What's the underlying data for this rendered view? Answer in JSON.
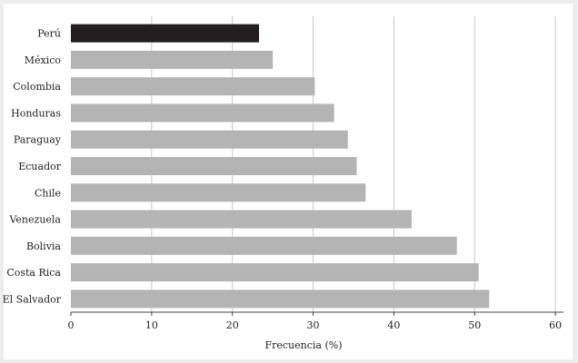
{
  "chart_data": {
    "type": "bar",
    "orientation": "horizontal",
    "categories": [
      "Perú",
      "México",
      "Colombia",
      "Honduras",
      "Paraguay",
      "Ecuador",
      "Chile",
      "Venezuela",
      "Bolivia",
      "Costa Rica",
      "El Salvador"
    ],
    "values": [
      23.3,
      25.0,
      30.2,
      32.6,
      34.3,
      35.4,
      36.5,
      42.2,
      47.8,
      50.5,
      51.8
    ],
    "highlight": "Perú",
    "colors": {
      "bar": "#b4b4b4",
      "highlight": "#231f20",
      "grid": "#c8c8c8",
      "axis": "#444444"
    },
    "xlabel": "Frecuencia (%)",
    "xlim": [
      0,
      61
    ],
    "xticks": [
      0,
      10,
      20,
      30,
      40,
      50,
      60
    ],
    "grid": "vertical",
    "title": "",
    "ylabel": ""
  }
}
